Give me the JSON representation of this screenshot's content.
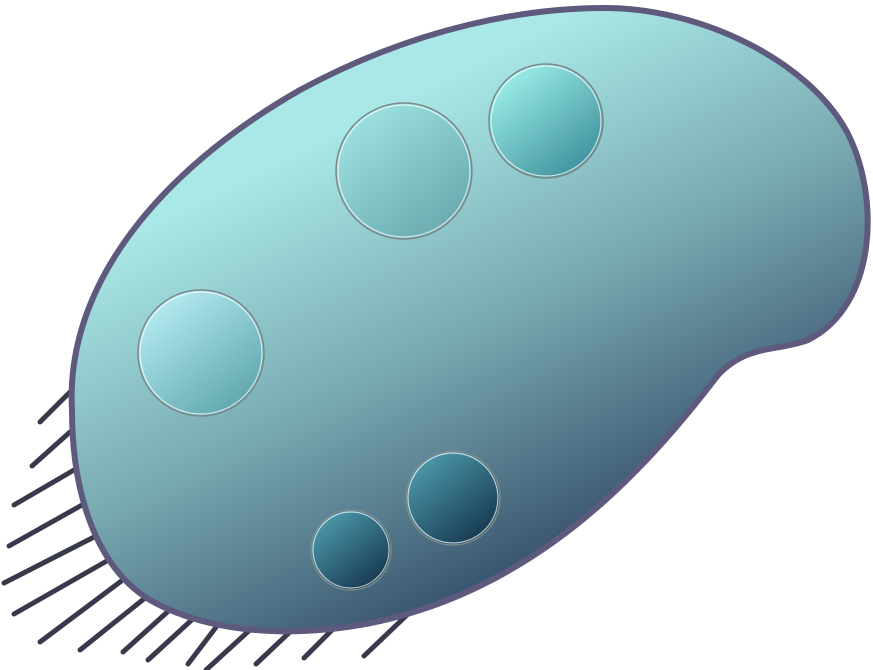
{
  "illustration": {
    "subject": "cell-illustration",
    "cilia_count": 15,
    "vacuole_count": 5
  },
  "colors": {
    "outline": "#5e5a7e",
    "cilia": "#383a4c",
    "body_light": "#a9e8e6",
    "body_mid": "#79aab2",
    "body_dark": "#3b5670",
    "vacuole_stroke": "#ffffff"
  }
}
